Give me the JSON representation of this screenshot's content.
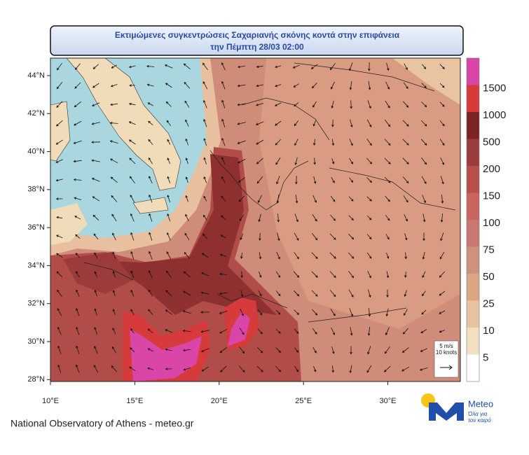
{
  "map": {
    "title": [
      "Εκτιμώμενες συγκεντρώσεις Σαχαριανής σκόνης κοντά στην επιφάνεια",
      "την Πέμπτη 28/03 02:00"
    ],
    "lon_range": [
      10,
      34.3
    ],
    "lat_range": [
      27.9,
      44.92
    ],
    "lon_ticks": [
      {
        "value": 10,
        "label": "10°E"
      },
      {
        "value": 15,
        "label": "15°E"
      },
      {
        "value": 20,
        "label": "20°E"
      },
      {
        "value": 25,
        "label": "25°E"
      },
      {
        "value": 30,
        "label": "30°E"
      }
    ],
    "lat_ticks": [
      {
        "value": 28,
        "label": "28°N"
      },
      {
        "value": 30,
        "label": "30°N"
      },
      {
        "value": 32,
        "label": "32°N"
      },
      {
        "value": 34,
        "label": "34°N"
      },
      {
        "value": 36,
        "label": "36°N"
      },
      {
        "value": 38,
        "label": "38°N"
      },
      {
        "value": 40,
        "label": "40°N"
      },
      {
        "value": 42,
        "label": "42°N"
      },
      {
        "value": 44,
        "label": "44°N"
      }
    ],
    "colorbar": {
      "levels": [
        {
          "value": 5,
          "color": "#ffffff"
        },
        {
          "value": 10,
          "color": "#f2e0c2"
        },
        {
          "value": 25,
          "color": "#e8c3a0"
        },
        {
          "value": 50,
          "color": "#dca584"
        },
        {
          "value": 75,
          "color": "#cc927f"
        },
        {
          "value": 100,
          "color": "#c87771"
        },
        {
          "value": 150,
          "color": "#c96461"
        },
        {
          "value": 200,
          "color": "#b84f4c"
        },
        {
          "value": 500,
          "color": "#9c3d3d"
        },
        {
          "value": 1000,
          "color": "#7b2424"
        },
        {
          "value": 1500,
          "color": "#d63a3a"
        }
      ],
      "top_color": "#d946a8"
    },
    "wind_key": [
      "5 m/s",
      "10 knots"
    ],
    "footer": "National Observatory of Athens - meteo.gr",
    "logo": {
      "name": "Meteo",
      "tagline": [
        "Όλα για",
        "τον καιρό"
      ]
    }
  }
}
